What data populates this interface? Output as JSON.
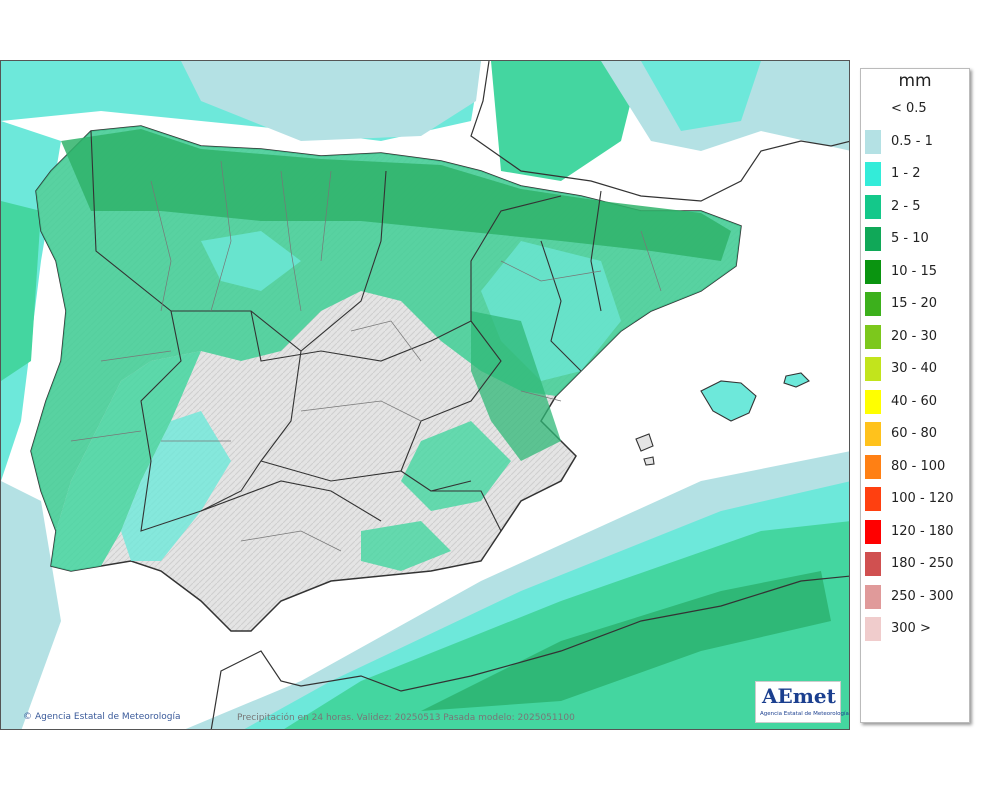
{
  "map": {
    "credit": "Agencia Estatal de Meteorología",
    "credit_symbol": "©",
    "caption": "Precipitación en 24 horas. Validez: 20250513 Pasada modelo: 2025051100",
    "logo_text": "AEmet",
    "logo_subtext": "Agencia Estatal de Meteorología"
  },
  "legend": {
    "unit": "mm",
    "items": [
      {
        "label": "< 0.5",
        "color": "#ffffff"
      },
      {
        "label": "0.5 - 1",
        "color": "#b4e1e4"
      },
      {
        "label": "1 - 2",
        "color": "#33ecd9"
      },
      {
        "label": "2 - 5",
        "color": "#14c88a"
      },
      {
        "label": "5 - 10",
        "color": "#10a858"
      },
      {
        "label": "10 - 15",
        "color": "#0a9410"
      },
      {
        "label": "15 - 20",
        "color": "#3cb01c"
      },
      {
        "label": "20 - 30",
        "color": "#7cc81c"
      },
      {
        "label": "30 - 40",
        "color": "#c2e41c"
      },
      {
        "label": "40 - 60",
        "color": "#ffff00"
      },
      {
        "label": "60 - 80",
        "color": "#ffc21c"
      },
      {
        "label": "80 - 100",
        "color": "#ff8014"
      },
      {
        "label": "100 - 120",
        "color": "#ff4010"
      },
      {
        "label": "120 - 180",
        "color": "#ff0000"
      },
      {
        "label": "180 - 250",
        "color": "#d05050"
      },
      {
        "label": "250 - 300",
        "color": "#e09a9a"
      },
      {
        "label": "300 >",
        "color": "#f0cccc"
      }
    ]
  }
}
